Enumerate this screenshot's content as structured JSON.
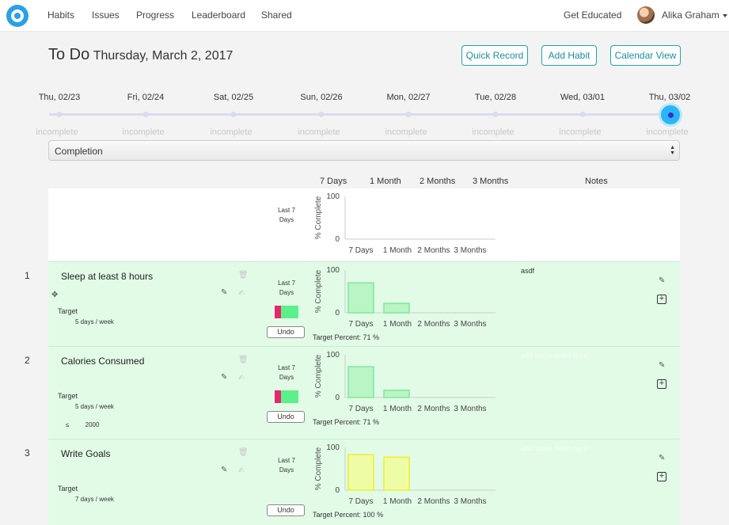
{
  "nav": {
    "items": [
      "Habits",
      "Issues",
      "Progress",
      "Leaderboard",
      "Shared"
    ],
    "get_educated": "Get Educated",
    "user": "Alika Graham"
  },
  "header": {
    "title": "To Do",
    "date": "Thursday, March 2, 2017",
    "buttons": {
      "quick_record": "Quick Record",
      "add_habit": "Add Habit",
      "calendar_view": "Calendar View"
    }
  },
  "timeline": {
    "dates": [
      "Thu, 02/23",
      "Fri, 02/24",
      "Sat, 02/25",
      "Sun, 02/26",
      "Mon, 02/27",
      "Tue, 02/28",
      "Wed, 03/01",
      "Thu, 03/02"
    ],
    "status": "incomplete"
  },
  "select": {
    "value": "Completion"
  },
  "columns": {
    "d7": "7 Days",
    "m1": "1 Month",
    "m2": "2 Months",
    "m3": "3 Months",
    "notes": "Notes"
  },
  "chart_labels": {
    "last7": "Last 7 Days",
    "ylabel": "% Complete",
    "categories": [
      "7 Days",
      "1 Month",
      "2 Months",
      "3 Months"
    ],
    "target_label": "Target",
    "undo": "Undo",
    "target_percent_prefix": "Target Percent:"
  },
  "habits": [
    {
      "num": "1",
      "name": "Sleep at least 8 hours",
      "target": "5 days / week",
      "extra": "",
      "target_percent": "71 %",
      "notes": "asdf",
      "notes_placeholder": false,
      "values": [
        70,
        22,
        0,
        0
      ],
      "color": "#b9f5c5",
      "stroke": "#7fe89a"
    },
    {
      "num": "2",
      "name": "Calories Consumed",
      "target": "5 days / week",
      "extra": "≤ 2000",
      "target_percent": "71 %",
      "notes": "add some notes here",
      "notes_placeholder": true,
      "values": [
        72,
        17,
        0,
        0
      ],
      "color": "#b9f5c5",
      "stroke": "#7fe89a"
    },
    {
      "num": "3",
      "name": "Write Goals",
      "target": "7 days / week",
      "extra": "",
      "target_percent": "100 %",
      "notes": "add some notes here",
      "notes_placeholder": true,
      "values": [
        83,
        77,
        0,
        0
      ],
      "color": "#eefca6",
      "stroke": "#f0ef2a"
    }
  ],
  "chart_data": [
    {
      "type": "bar",
      "ylabel": "% Complete",
      "categories": [
        "7 Days",
        "1 Month",
        "2 Months",
        "3 Months"
      ],
      "ylim": [
        0,
        100
      ],
      "values": [
        0,
        0,
        0,
        0
      ]
    },
    {
      "type": "bar",
      "ylabel": "% Complete",
      "categories": [
        "7 Days",
        "1 Month",
        "2 Months",
        "3 Months"
      ],
      "ylim": [
        0,
        100
      ],
      "values": [
        70,
        22,
        0,
        0
      ]
    },
    {
      "type": "bar",
      "ylabel": "% Complete",
      "categories": [
        "7 Days",
        "1 Month",
        "2 Months",
        "3 Months"
      ],
      "ylim": [
        0,
        100
      ],
      "values": [
        72,
        17,
        0,
        0
      ]
    },
    {
      "type": "bar",
      "ylabel": "% Complete",
      "categories": [
        "7 Days",
        "1 Month",
        "2 Months",
        "3 Months"
      ],
      "ylim": [
        0,
        100
      ],
      "values": [
        83,
        77,
        0,
        0
      ]
    }
  ]
}
